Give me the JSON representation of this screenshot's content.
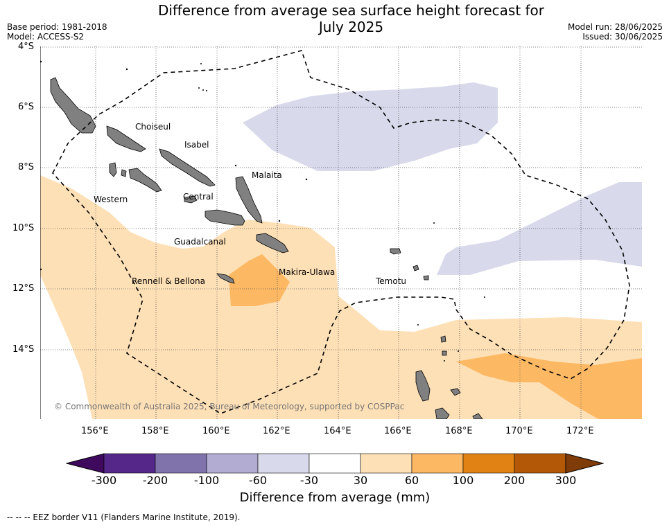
{
  "header": {
    "title_line1": "Difference from average sea surface height forecast for",
    "title_line2": "July 2025",
    "base_period": "Base period: 1981-2018",
    "model": "Model: ACCESS-S2",
    "model_run": "Model run: 28/06/2025",
    "issued": "Issued: 30/06/2025"
  },
  "map": {
    "lat_ticks": [
      "4°S",
      "6°S",
      "8°S",
      "10°S",
      "12°S",
      "14°S"
    ],
    "lon_ticks": [
      "156°E",
      "158°E",
      "160°E",
      "162°E",
      "164°E",
      "166°E",
      "168°E",
      "170°E",
      "172°E"
    ],
    "province_labels": [
      "Choiseul",
      "Isabel",
      "Malaita",
      "Western",
      "Central",
      "Guadalcanal",
      "Makira-Ulawa",
      "Rennell & Bellona",
      "Temotu"
    ],
    "credit": "© Commonwealth of Australia 2025, Bureau of Meteorology, supported by COSPPac",
    "land_color": "#808080",
    "eez_style": "dashed black"
  },
  "colorbar": {
    "title": "Difference from average (mm)",
    "boundaries": [
      "-300",
      "-200",
      "-100",
      "-60",
      "-30",
      "30",
      "60",
      "100",
      "200",
      "300"
    ],
    "under_color": "#3f0a5e",
    "over_color": "#7f3b08",
    "colors": [
      "#542788",
      "#8073ac",
      "#b2abd2",
      "#d8daeb",
      "#ffffff",
      "#fee0b6",
      "#fdb863",
      "#e08214",
      "#b35806"
    ]
  },
  "footer": {
    "legend_text": "-- -- -- EEZ border V11 (Flanders Marine Institute, 2019)."
  }
}
